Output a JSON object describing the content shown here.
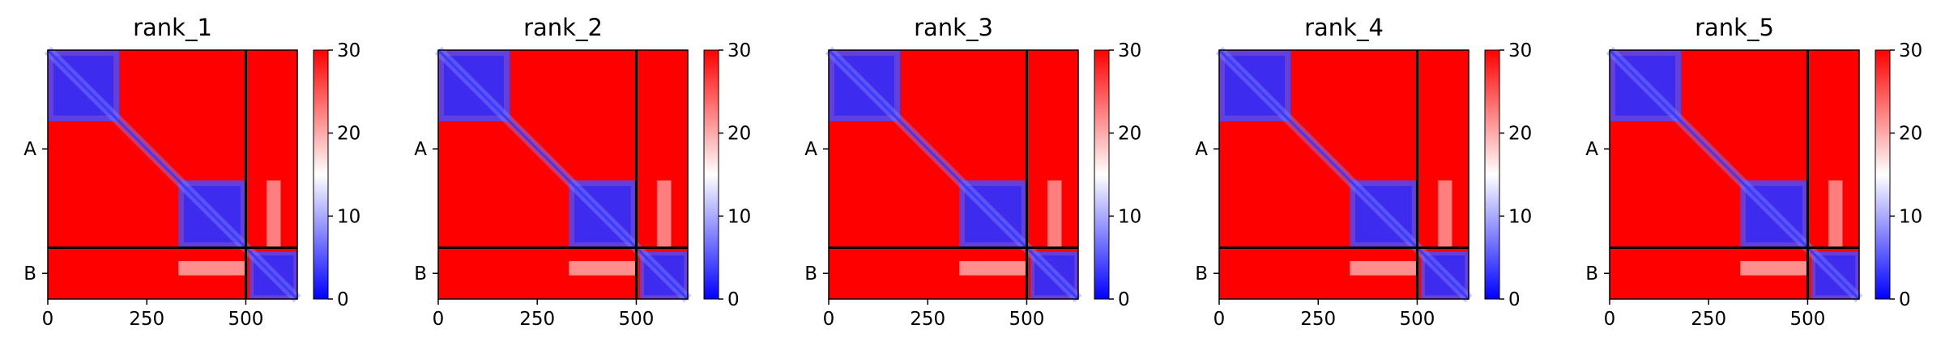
{
  "chart_data": [
    {
      "type": "heatmap",
      "title": "rank_1",
      "xticks": [
        0,
        250,
        500
      ],
      "yticks": [
        "A",
        "B"
      ],
      "chain_split": 500,
      "length": 630,
      "colorbar": {
        "ticks": [
          0,
          10,
          20,
          30
        ],
        "range": [
          0,
          30
        ],
        "cmap": [
          "#0000ff",
          "#ffffff",
          "#ff0000"
        ]
      },
      "domains": [
        [
          0,
          180
        ],
        [
          330,
          500
        ],
        [
          510,
          630
        ]
      ],
      "interfaces": [
        [
          [
            510,
            630
          ],
          [
            330,
            500
          ]
        ]
      ]
    },
    {
      "type": "heatmap",
      "title": "rank_2",
      "xticks": [
        0,
        250,
        500
      ],
      "yticks": [
        "A",
        "B"
      ],
      "chain_split": 500,
      "length": 630,
      "colorbar": {
        "ticks": [
          0,
          10,
          20,
          30
        ],
        "range": [
          0,
          30
        ],
        "cmap": [
          "#0000ff",
          "#ffffff",
          "#ff0000"
        ]
      },
      "domains": [
        [
          0,
          180
        ],
        [
          330,
          500
        ],
        [
          510,
          630
        ]
      ],
      "interfaces": [
        [
          [
            510,
            630
          ],
          [
            330,
            500
          ]
        ]
      ]
    },
    {
      "type": "heatmap",
      "title": "rank_3",
      "xticks": [
        0,
        250,
        500
      ],
      "yticks": [
        "A",
        "B"
      ],
      "chain_split": 500,
      "length": 630,
      "colorbar": {
        "ticks": [
          0,
          10,
          20,
          30
        ],
        "range": [
          0,
          30
        ],
        "cmap": [
          "#0000ff",
          "#ffffff",
          "#ff0000"
        ]
      },
      "domains": [
        [
          0,
          180
        ],
        [
          330,
          500
        ],
        [
          510,
          630
        ]
      ],
      "interfaces": [
        [
          [
            510,
            630
          ],
          [
            330,
            500
          ]
        ]
      ]
    },
    {
      "type": "heatmap",
      "title": "rank_4",
      "xticks": [
        0,
        250,
        500
      ],
      "yticks": [
        "A",
        "B"
      ],
      "chain_split": 500,
      "length": 630,
      "colorbar": {
        "ticks": [
          0,
          10,
          20,
          30
        ],
        "range": [
          0,
          30
        ],
        "cmap": [
          "#0000ff",
          "#ffffff",
          "#ff0000"
        ]
      },
      "domains": [
        [
          0,
          180
        ],
        [
          330,
          500
        ],
        [
          510,
          630
        ]
      ],
      "interfaces": [
        [
          [
            510,
            630
          ],
          [
            330,
            500
          ]
        ]
      ]
    },
    {
      "type": "heatmap",
      "title": "rank_5",
      "xticks": [
        0,
        250,
        500
      ],
      "yticks": [
        "A",
        "B"
      ],
      "chain_split": 500,
      "length": 630,
      "colorbar": {
        "ticks": [
          0,
          10,
          20,
          30
        ],
        "range": [
          0,
          30
        ],
        "cmap": [
          "#0000ff",
          "#ffffff",
          "#ff0000"
        ]
      },
      "domains": [
        [
          0,
          180
        ],
        [
          330,
          500
        ],
        [
          510,
          630
        ]
      ],
      "interfaces": [
        [
          [
            510,
            630
          ],
          [
            330,
            500
          ]
        ]
      ]
    }
  ]
}
